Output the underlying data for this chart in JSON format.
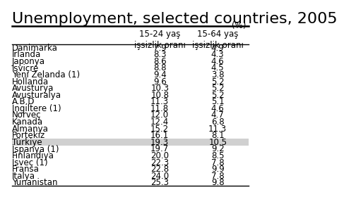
{
  "title": "Unemployment, selected countries, 2005",
  "subtitle": "(%)",
  "col1_header_line1": "15-24 yaş",
  "col1_header_line2": "işsizlik oranı",
  "col2_header_line1": "15-64 yaş",
  "col2_header_line2": "işsizlik oranı",
  "rows": [
    {
      "country": "Danimarka",
      "col1": "7.9",
      "col2": "4.9",
      "highlight": false
    },
    {
      "country": "İrlanda",
      "col1": "8.3",
      "col2": "4.3",
      "highlight": false
    },
    {
      "country": "Japonya",
      "col1": "8.6",
      "col2": "4.6",
      "highlight": false
    },
    {
      "country": "İsviçre",
      "col1": "8.8",
      "col2": "4.5",
      "highlight": false
    },
    {
      "country": "Yeni Zelanda (1)",
      "col1": "9.4",
      "col2": "3.8",
      "highlight": false
    },
    {
      "country": "Hollanda",
      "col1": "9.6",
      "col2": "5.2",
      "highlight": false
    },
    {
      "country": "Avusturya",
      "col1": "10.3",
      "col2": "5.2",
      "highlight": false
    },
    {
      "country": "Avusturalya",
      "col1": "10.8",
      "col2": "5.2",
      "highlight": false
    },
    {
      "country": "A.B.D",
      "col1": "11.3",
      "col2": "5.1",
      "highlight": false
    },
    {
      "country": "İngiltere (1)",
      "col1": "11.8",
      "col2": "4.6",
      "highlight": false
    },
    {
      "country": "Norveç",
      "col1": "12.0",
      "col2": "4.7",
      "highlight": false
    },
    {
      "country": "Kanada",
      "col1": "12.4",
      "col2": "6.8",
      "highlight": false
    },
    {
      "country": "Almanya",
      "col1": "15.2",
      "col2": "11.3",
      "highlight": false
    },
    {
      "country": "Portekiz",
      "col1": "16.1",
      "col2": "8.1",
      "highlight": false
    },
    {
      "country": "Türkiye",
      "col1": "19.3",
      "col2": "10.5",
      "highlight": true
    },
    {
      "country": "İspanya (1)",
      "col1": "19.7",
      "col2": "9.2",
      "highlight": false
    },
    {
      "country": "Finlandiya",
      "col1": "20.0",
      "col2": "8.5",
      "highlight": false
    },
    {
      "country": "İsveç (1)",
      "col1": "22.3",
      "col2": "7.8",
      "highlight": false
    },
    {
      "country": "Fransa",
      "col1": "22.8",
      "col2": "9.9",
      "highlight": false
    },
    {
      "country": "İtalya",
      "col1": "24.0",
      "col2": "7.8",
      "highlight": false
    },
    {
      "country": "Yunanistan",
      "col1": "25.3",
      "col2": "9.8",
      "highlight": false
    }
  ],
  "bg_color": "#ffffff",
  "highlight_color": "#d0d0d0",
  "title_fontsize": 16,
  "header_fontsize": 8.5,
  "data_fontsize": 8.5
}
